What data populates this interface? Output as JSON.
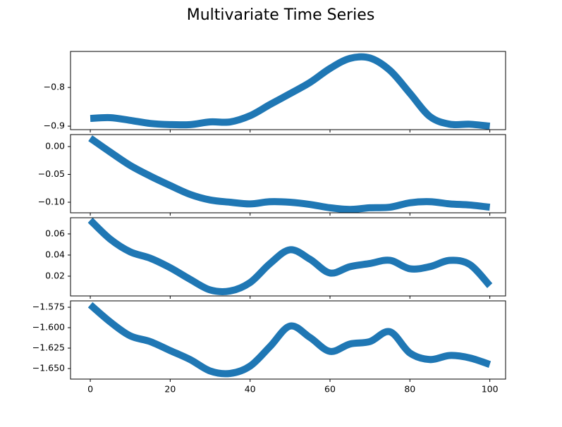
{
  "title": "Multivariate Time Series",
  "chart_data": [
    {
      "type": "line",
      "color": "#1f77b4",
      "x": [
        0,
        5,
        10,
        15,
        20,
        25,
        30,
        35,
        40,
        45,
        50,
        55,
        60,
        65,
        70,
        75,
        80,
        85,
        90,
        95,
        100
      ],
      "values": [
        -0.88,
        -0.878,
        -0.885,
        -0.893,
        -0.896,
        -0.896,
        -0.889,
        -0.889,
        -0.873,
        -0.844,
        -0.816,
        -0.787,
        -0.751,
        -0.725,
        -0.724,
        -0.756,
        -0.815,
        -0.875,
        -0.895,
        -0.895,
        -0.9
      ],
      "xlim": [
        -4.95,
        103.95
      ],
      "ylim": [
        -0.909,
        -0.707
      ],
      "yticks": [
        {
          "value": -0.9,
          "label": "−0.9"
        },
        {
          "value": -0.8,
          "label": "−0.8"
        }
      ]
    },
    {
      "type": "line",
      "color": "#1f77b4",
      "x": [
        0,
        5,
        10,
        15,
        20,
        25,
        30,
        35,
        40,
        45,
        50,
        55,
        60,
        65,
        70,
        75,
        80,
        85,
        90,
        95,
        100
      ],
      "values": [
        0.015,
        -0.01,
        -0.034,
        -0.053,
        -0.07,
        -0.086,
        -0.096,
        -0.1,
        -0.103,
        -0.099,
        -0.1,
        -0.104,
        -0.11,
        -0.113,
        -0.11,
        -0.109,
        -0.101,
        -0.099,
        -0.103,
        -0.105,
        -0.109
      ],
      "xlim": [
        -4.95,
        103.95
      ],
      "ylim": [
        -0.119,
        0.0215
      ],
      "yticks": [
        {
          "value": -0.1,
          "label": "−0.10"
        },
        {
          "value": -0.05,
          "label": "−0.05"
        },
        {
          "value": 0,
          "label": "0.00"
        }
      ]
    },
    {
      "type": "line",
      "color": "#1f77b4",
      "x": [
        0,
        5,
        10,
        15,
        20,
        25,
        30,
        35,
        40,
        45,
        50,
        55,
        60,
        65,
        70,
        75,
        80,
        85,
        90,
        95,
        100
      ],
      "values": [
        0.073,
        0.055,
        0.043,
        0.037,
        0.028,
        0.017,
        0.007,
        0.006,
        0.014,
        0.032,
        0.045,
        0.036,
        0.023,
        0.029,
        0.032,
        0.035,
        0.027,
        0.029,
        0.035,
        0.031,
        0.011
      ],
      "xlim": [
        -4.95,
        103.95
      ],
      "ylim": [
        0.0013,
        0.0753
      ],
      "yticks": [
        0.02,
        0.04,
        0.06
      ]
    },
    {
      "type": "line",
      "color": "#1f77b4",
      "x": [
        0,
        5,
        10,
        15,
        20,
        25,
        30,
        35,
        40,
        45,
        50,
        55,
        60,
        65,
        70,
        75,
        80,
        85,
        90,
        95,
        100
      ],
      "values": [
        -1.572,
        -1.593,
        -1.61,
        -1.617,
        -1.628,
        -1.639,
        -1.653,
        -1.656,
        -1.647,
        -1.623,
        -1.598,
        -1.612,
        -1.629,
        -1.62,
        -1.617,
        -1.605,
        -1.631,
        -1.639,
        -1.634,
        -1.637,
        -1.645
      ],
      "xlim": [
        -4.95,
        103.95
      ],
      "ylim": [
        -1.6629,
        -1.5672
      ],
      "yticks": [
        {
          "value": -1.65,
          "label": "−1.650"
        },
        {
          "value": -1.625,
          "label": "−1.625"
        },
        {
          "value": -1.6,
          "label": "−1.600"
        },
        {
          "value": -1.575,
          "label": "−1.575"
        }
      ],
      "xticks": [
        0,
        20,
        40,
        60,
        80,
        100
      ]
    }
  ]
}
